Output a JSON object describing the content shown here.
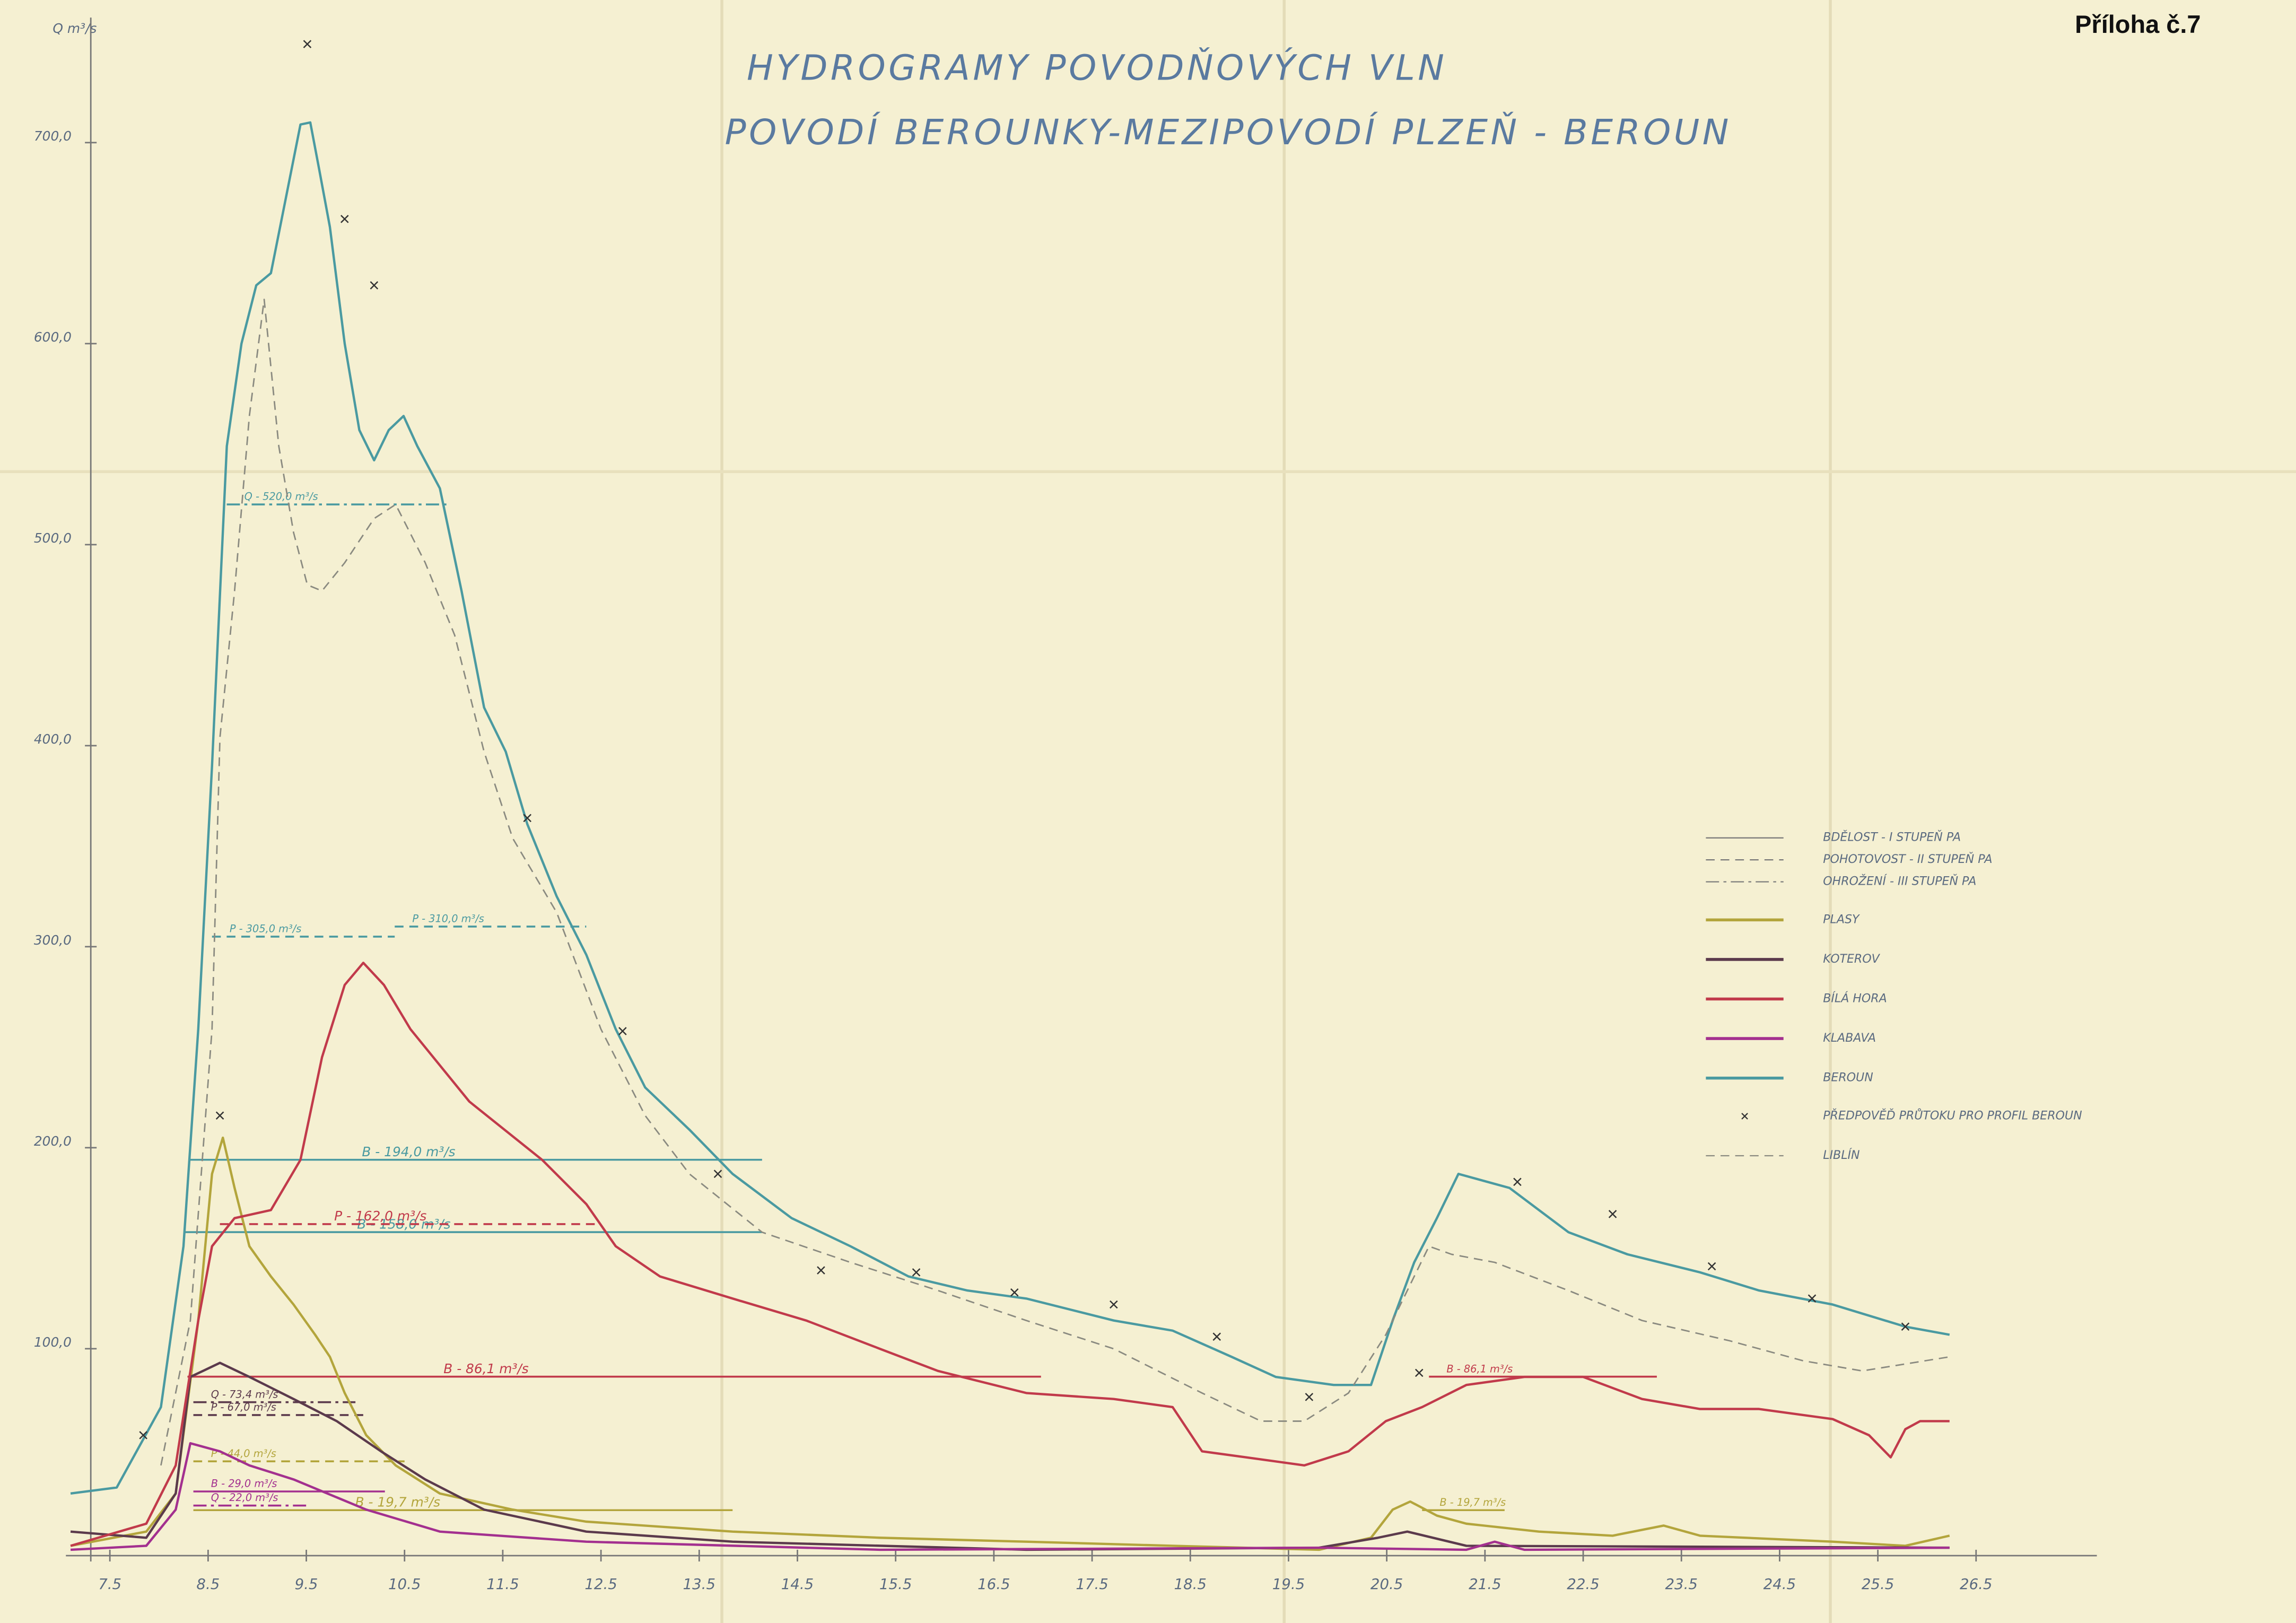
{
  "chart_data": {
    "type": "line",
    "corner_label": "Příloha č.7",
    "title": "HYDROGRAMY POVODŇOVÝCH VLN",
    "subtitle": "POVODÍ BEROUNKY-MEZIPOVODÍ PLZEŇ - BEROUN",
    "y_label": "Q m³/s",
    "xlim": [
      6.5,
      27.2
    ],
    "ylim": [
      0,
      760
    ],
    "xticks": [
      {
        "value": 7,
        "label": "7.5"
      },
      {
        "value": 8,
        "label": "8.5"
      },
      {
        "value": 9,
        "label": "9.5"
      },
      {
        "value": 10,
        "label": "10.5"
      },
      {
        "value": 11,
        "label": "11.5"
      },
      {
        "value": 12,
        "label": "12.5"
      },
      {
        "value": 13,
        "label": "13.5"
      },
      {
        "value": 14,
        "label": "14.5"
      },
      {
        "value": 15,
        "label": "15.5"
      },
      {
        "value": 16,
        "label": "16.5"
      },
      {
        "value": 17,
        "label": "17.5"
      },
      {
        "value": 18,
        "label": "18.5"
      },
      {
        "value": 19,
        "label": "19.5"
      },
      {
        "value": 20,
        "label": "20.5"
      },
      {
        "value": 21,
        "label": "21.5"
      },
      {
        "value": 22,
        "label": "22.5"
      },
      {
        "value": 23,
        "label": "23.5"
      },
      {
        "value": 24,
        "label": "24.5"
      },
      {
        "value": 25,
        "label": "25.5"
      },
      {
        "value": 26,
        "label": "26.5"
      }
    ],
    "yticks": [
      {
        "value": 100,
        "label": "100,0"
      },
      {
        "value": 200,
        "label": "200,0"
      },
      {
        "value": 300,
        "label": "300,0"
      },
      {
        "value": 400,
        "label": "400,0"
      },
      {
        "value": 500,
        "label": "500,0"
      },
      {
        "value": 600,
        "label": "600,0"
      },
      {
        "value": 700,
        "label": "700,0"
      }
    ],
    "legend_styles": [
      {
        "name": "BDĚLOST - I STUPEŇ PA",
        "style": "solid"
      },
      {
        "name": "POHOTOVOST - II STUPEŇ PA",
        "style": "dashed"
      },
      {
        "name": "OHROŽENÍ - III STUPEŇ PA",
        "style": "dashdot"
      }
    ],
    "series": [
      {
        "name": "PLASY",
        "color": "#b3a53c",
        "style": "solid",
        "x": [
          6.6,
          7.37,
          7.67,
          7.9,
          8.04,
          8.15,
          8.27,
          8.42,
          8.64,
          8.87,
          9.09,
          9.24,
          9.39,
          9.61,
          9.91,
          10.36,
          11.1,
          11.85,
          13.34,
          14.84,
          16.33,
          17.82,
          19.31,
          19.84,
          20.06,
          20.24,
          20.51,
          20.81,
          21.55,
          22.3,
          22.82,
          23.19,
          24.54,
          25.28,
          25.73
        ],
        "values": [
          2,
          9,
          28,
          114,
          187,
          205,
          180,
          151,
          136,
          122,
          107,
          96,
          78,
          57,
          42,
          28,
          20,
          14,
          9,
          6,
          4,
          2,
          0,
          6,
          20,
          24,
          17,
          13,
          9,
          7,
          12,
          7,
          4,
          2,
          7
        ]
      },
      {
        "name": "KOTEROV",
        "color": "#5b3a4c",
        "style": "solid",
        "x": [
          6.6,
          7.37,
          7.67,
          7.82,
          8.12,
          8.42,
          8.87,
          9.31,
          9.76,
          10.21,
          10.81,
          11.85,
          13.34,
          16.33,
          19.31,
          19.91,
          20.21,
          20.81,
          25.73
        ],
        "values": [
          9,
          6,
          28,
          86,
          93,
          86,
          75,
          64,
          49,
          35,
          20,
          9,
          4,
          0,
          1,
          6,
          9,
          2,
          1
        ]
      },
      {
        "name": "BÍLÁ HORA",
        "color": "#c13a4b",
        "style": "solid",
        "x": [
          6.6,
          7.37,
          7.67,
          7.9,
          8.04,
          8.27,
          8.64,
          8.94,
          9.16,
          9.39,
          9.58,
          9.79,
          10.06,
          10.66,
          11.4,
          11.85,
          12.15,
          12.6,
          13.34,
          14.09,
          14.84,
          15.43,
          16.33,
          17.22,
          17.82,
          18.12,
          18.57,
          19.16,
          19.61,
          19.99,
          20.36,
          20.81,
          21.4,
          22.0,
          22.6,
          23.19,
          23.79,
          24.54,
          24.91,
          25.13,
          25.28,
          25.43,
          25.73
        ],
        "values": [
          2,
          13,
          42,
          114,
          151,
          165,
          169,
          194,
          245,
          281,
          292,
          281,
          259,
          223,
          194,
          172,
          151,
          136,
          125,
          114,
          100,
          89,
          78,
          75,
          71,
          49,
          46,
          42,
          49,
          64,
          71,
          82,
          86,
          86,
          75,
          70,
          70,
          65,
          57,
          46,
          60,
          64,
          64
        ]
      },
      {
        "name": "KLABAVA",
        "color": "#a3308f",
        "style": "solid",
        "x": [
          6.6,
          7.37,
          7.67,
          7.82,
          8.12,
          8.42,
          8.87,
          9.61,
          10.36,
          11.85,
          14.84,
          19.31,
          20.81,
          21.1,
          21.4,
          25.73
        ],
        "values": [
          0,
          2,
          20,
          53,
          49,
          42,
          35,
          20,
          9,
          4,
          0,
          1,
          0,
          4,
          0,
          1
        ]
      },
      {
        "name": "BEROUN",
        "color": "#4a9aa1",
        "style": "solid",
        "x": [
          6.6,
          7.07,
          7.52,
          7.75,
          7.9,
          8.04,
          8.19,
          8.34,
          8.49,
          8.64,
          8.79,
          8.94,
          9.04,
          9.13,
          9.24,
          9.39,
          9.54,
          9.69,
          9.84,
          9.99,
          10.13,
          10.36,
          10.58,
          10.81,
          11.03,
          11.25,
          11.55,
          11.85,
          12.15,
          12.45,
          12.9,
          13.34,
          13.94,
          14.54,
          15.13,
          15.73,
          16.33,
          17.22,
          17.82,
          18.42,
          18.87,
          19.46,
          19.84,
          20.06,
          20.28,
          20.51,
          20.73,
          21.25,
          21.85,
          22.45,
          23.19,
          23.79,
          24.54,
          25.28,
          25.73
        ],
        "values": [
          28,
          31,
          71,
          151,
          259,
          390,
          549,
          600,
          629,
          635,
          672,
          709,
          710,
          687,
          658,
          600,
          557,
          542,
          557,
          564,
          549,
          528,
          477,
          419,
          397,
          361,
          325,
          296,
          259,
          230,
          209,
          187,
          165,
          151,
          136,
          129,
          125,
          114,
          109,
          96,
          86,
          82,
          82,
          114,
          143,
          165,
          187,
          180,
          158,
          147,
          138,
          129,
          122,
          111,
          107
        ]
      },
      {
        "name": "LIBLÍN",
        "color": "#8a8a80",
        "style": "dashed",
        "x": [
          7.52,
          7.82,
          8.04,
          8.12,
          8.27,
          8.42,
          8.57,
          8.72,
          8.87,
          9.01,
          9.16,
          9.39,
          9.69,
          9.91,
          10.21,
          10.51,
          10.81,
          11.1,
          11.55,
          12.0,
          12.45,
          12.9,
          13.64,
          14.54,
          15.43,
          16.33,
          17.22,
          18.12,
          18.72,
          19.16,
          19.61,
          19.99,
          20.21,
          20.43,
          20.66,
          21.1,
          21.85,
          22.6,
          23.49,
          24.24,
          24.84,
          25.73
        ],
        "values": [
          42,
          114,
          259,
          404,
          477,
          564,
          622,
          549,
          506,
          480,
          477,
          491,
          513,
          520,
          491,
          455,
          397,
          354,
          317,
          259,
          216,
          187,
          158,
          143,
          129,
          114,
          100,
          78,
          64,
          64,
          78,
          107,
          129,
          151,
          147,
          143,
          129,
          114,
          104,
          94,
          89,
          96
        ]
      }
    ],
    "forecast": {
      "name": "PŘEDPOVĚĎ PRŮTOKU PRO PROFIL BEROUN",
      "color": "#333333",
      "x": [
        7.34,
        8.12,
        9.01,
        9.39,
        9.69,
        11.25,
        12.22,
        13.19,
        14.24,
        15.21,
        16.21,
        17.22,
        18.27,
        19.21,
        20.33,
        21.33,
        22.3,
        23.31,
        24.33,
        25.28
      ],
      "values": [
        57,
        216,
        749,
        662,
        629,
        364,
        258,
        187,
        139,
        138,
        128,
        122,
        106,
        76,
        88,
        183,
        167,
        141,
        125,
        111
      ]
    },
    "thresholds": [
      {
        "label": "Q - 520,0 m³/s",
        "value": 520,
        "x": [
          8.19,
          10.43
        ],
        "style": "dashdot",
        "color": "#4a9aa1"
      },
      {
        "label": "P - 305,0 m³/s",
        "value": 305,
        "x": [
          8.04,
          9.9
        ],
        "style": "dashed",
        "color": "#4a9aa1"
      },
      {
        "label": "P - 310,0 m³/s",
        "value": 310,
        "x": [
          9.9,
          11.85
        ],
        "style": "dashed",
        "color": "#4a9aa1"
      },
      {
        "label": "B - 194,0 m³/s",
        "value": 194,
        "x": [
          7.82,
          13.64
        ],
        "style": "solid",
        "color": "#4a9aa1"
      },
      {
        "label": "B - 158,0 m³/s",
        "value": 158,
        "x": [
          7.75,
          13.64
        ],
        "style": "solid",
        "color": "#4a9aa1"
      },
      {
        "label": "P - 162,0 m³/s",
        "value": 162,
        "x": [
          8.12,
          12.0
        ],
        "style": "dashed",
        "color": "#c13a4b"
      },
      {
        "label": "B - 86,1 m³/s",
        "value": 86.1,
        "x": [
          7.79,
          16.48
        ],
        "style": "solid",
        "color": "#c13a4b"
      },
      {
        "label": "B - 86,1 m³/s",
        "value": 86.1,
        "x": [
          20.43,
          22.75
        ],
        "style": "solid",
        "color": "#c13a4b"
      },
      {
        "label": "Q - 73,4 m³/s",
        "value": 73.4,
        "x": [
          7.85,
          9.5
        ],
        "style": "dashdot",
        "color": "#5b3a4c"
      },
      {
        "label": "P - 67,0 m³/s",
        "value": 67,
        "x": [
          7.85,
          9.6
        ],
        "style": "dashed",
        "color": "#5b3a4c"
      },
      {
        "label": "P - 44,0 m³/s",
        "value": 44,
        "x": [
          7.85,
          10.0
        ],
        "style": "dashed",
        "color": "#b3a53c"
      },
      {
        "label": "B - 29,0 m³/s",
        "value": 29,
        "x": [
          7.85,
          9.8
        ],
        "style": "solid",
        "color": "#a3308f"
      },
      {
        "label": "Q - 22,0 m³/s",
        "value": 22,
        "x": [
          7.85,
          9.0
        ],
        "style": "dashdot",
        "color": "#a3308f"
      },
      {
        "label": "B - 19,7 m³/s",
        "value": 19.7,
        "x": [
          7.85,
          13.34
        ],
        "style": "solid",
        "color": "#b3a53c"
      },
      {
        "label": "B - 19,7 m³/s",
        "value": 19.7,
        "x": [
          20.36,
          21.2
        ],
        "style": "solid",
        "color": "#b3a53c"
      }
    ]
  }
}
